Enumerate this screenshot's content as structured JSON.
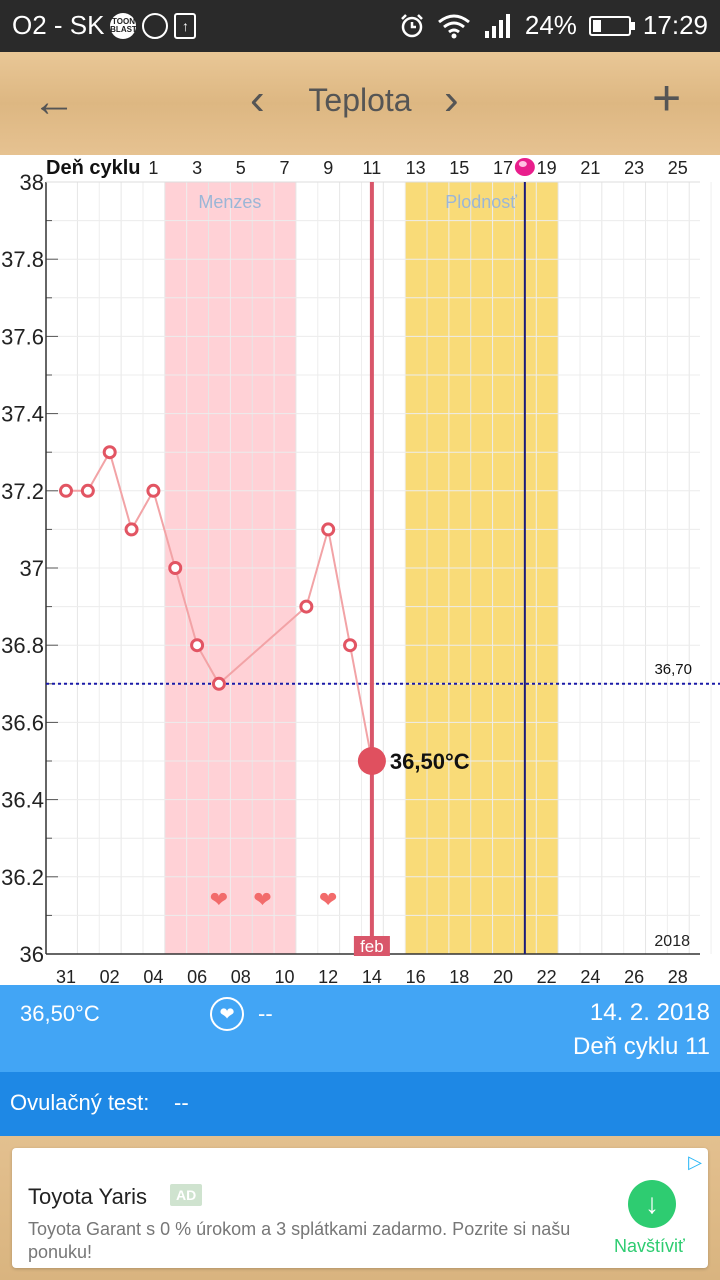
{
  "status_bar": {
    "carrier": "O2 - SK",
    "toon_badge": "TOON BLAST",
    "battery": "24%",
    "time": "17:29",
    "battery_level": 0.24,
    "icons": [
      "toon-blast-icon",
      "messenger-icon",
      "upload-icon",
      "alarm-icon",
      "wifi-icon",
      "signal-icon",
      "battery-icon"
    ]
  },
  "header": {
    "back_icon": "←",
    "prev_icon": "‹",
    "title": "Teplota",
    "next_icon": "›",
    "add_icon": "+"
  },
  "chart_data": {
    "type": "line",
    "cycle_label": "Deň cyklu",
    "cycle_ticks": [
      "1",
      "3",
      "5",
      "7",
      "9",
      "11",
      "13",
      "15",
      "17",
      "19",
      "21",
      "23",
      "25"
    ],
    "date_ticks": [
      "31",
      "02",
      "04",
      "06",
      "08",
      "10",
      "12",
      "14",
      "16",
      "18",
      "20",
      "22",
      "24",
      "26",
      "28"
    ],
    "y_ticks": [
      "38",
      "37.8",
      "37.6",
      "37.4",
      "37.2",
      "37",
      "36.8",
      "36.6",
      "36.4",
      "36.2",
      "36"
    ],
    "ylim": [
      36,
      38
    ],
    "series": [
      {
        "day_index": [
          0,
          1,
          2,
          3,
          4,
          5,
          6,
          7,
          11,
          12,
          13,
          14
        ],
        "values": [
          37.2,
          37.2,
          37.3,
          37.1,
          37.2,
          37.0,
          36.8,
          36.7,
          36.9,
          37.1,
          36.8,
          36.5
        ]
      }
    ],
    "selected": {
      "day_index": 14,
      "value": 36.5,
      "label": "36,50°C"
    },
    "reference_line": {
      "value": 36.7,
      "label": "36,70"
    },
    "bands": [
      {
        "label": "Menzes",
        "from": 5,
        "to": 11,
        "color": "#ffd1d6"
      },
      {
        "label": "Plodnosť",
        "from": 16,
        "to": 23,
        "color": "#f9db78"
      }
    ],
    "ovulation_day_index": 21,
    "hearts_day_index": [
      7,
      9,
      12
    ],
    "heart_glyph": "❤",
    "month_label": "feb",
    "year_label": "2018",
    "grid": true
  },
  "info": {
    "temperature": "36,50°C",
    "heart_icon": "❤",
    "intercourse": "--",
    "date": "14. 2. 2018",
    "cycle_day": "Deň cyklu 11"
  },
  "ovulation_test": {
    "label": "Ovulačný test:",
    "value": "--"
  },
  "ad": {
    "title": "Toyota Yaris",
    "badge": "AD",
    "description": "Toyota Garant s 0 % úrokom a 3 splátkami zadarmo. Pozrite si našu ponuku!",
    "cta": "Navštíviť",
    "cta_icon": "↓",
    "choices_icon": "▷"
  }
}
